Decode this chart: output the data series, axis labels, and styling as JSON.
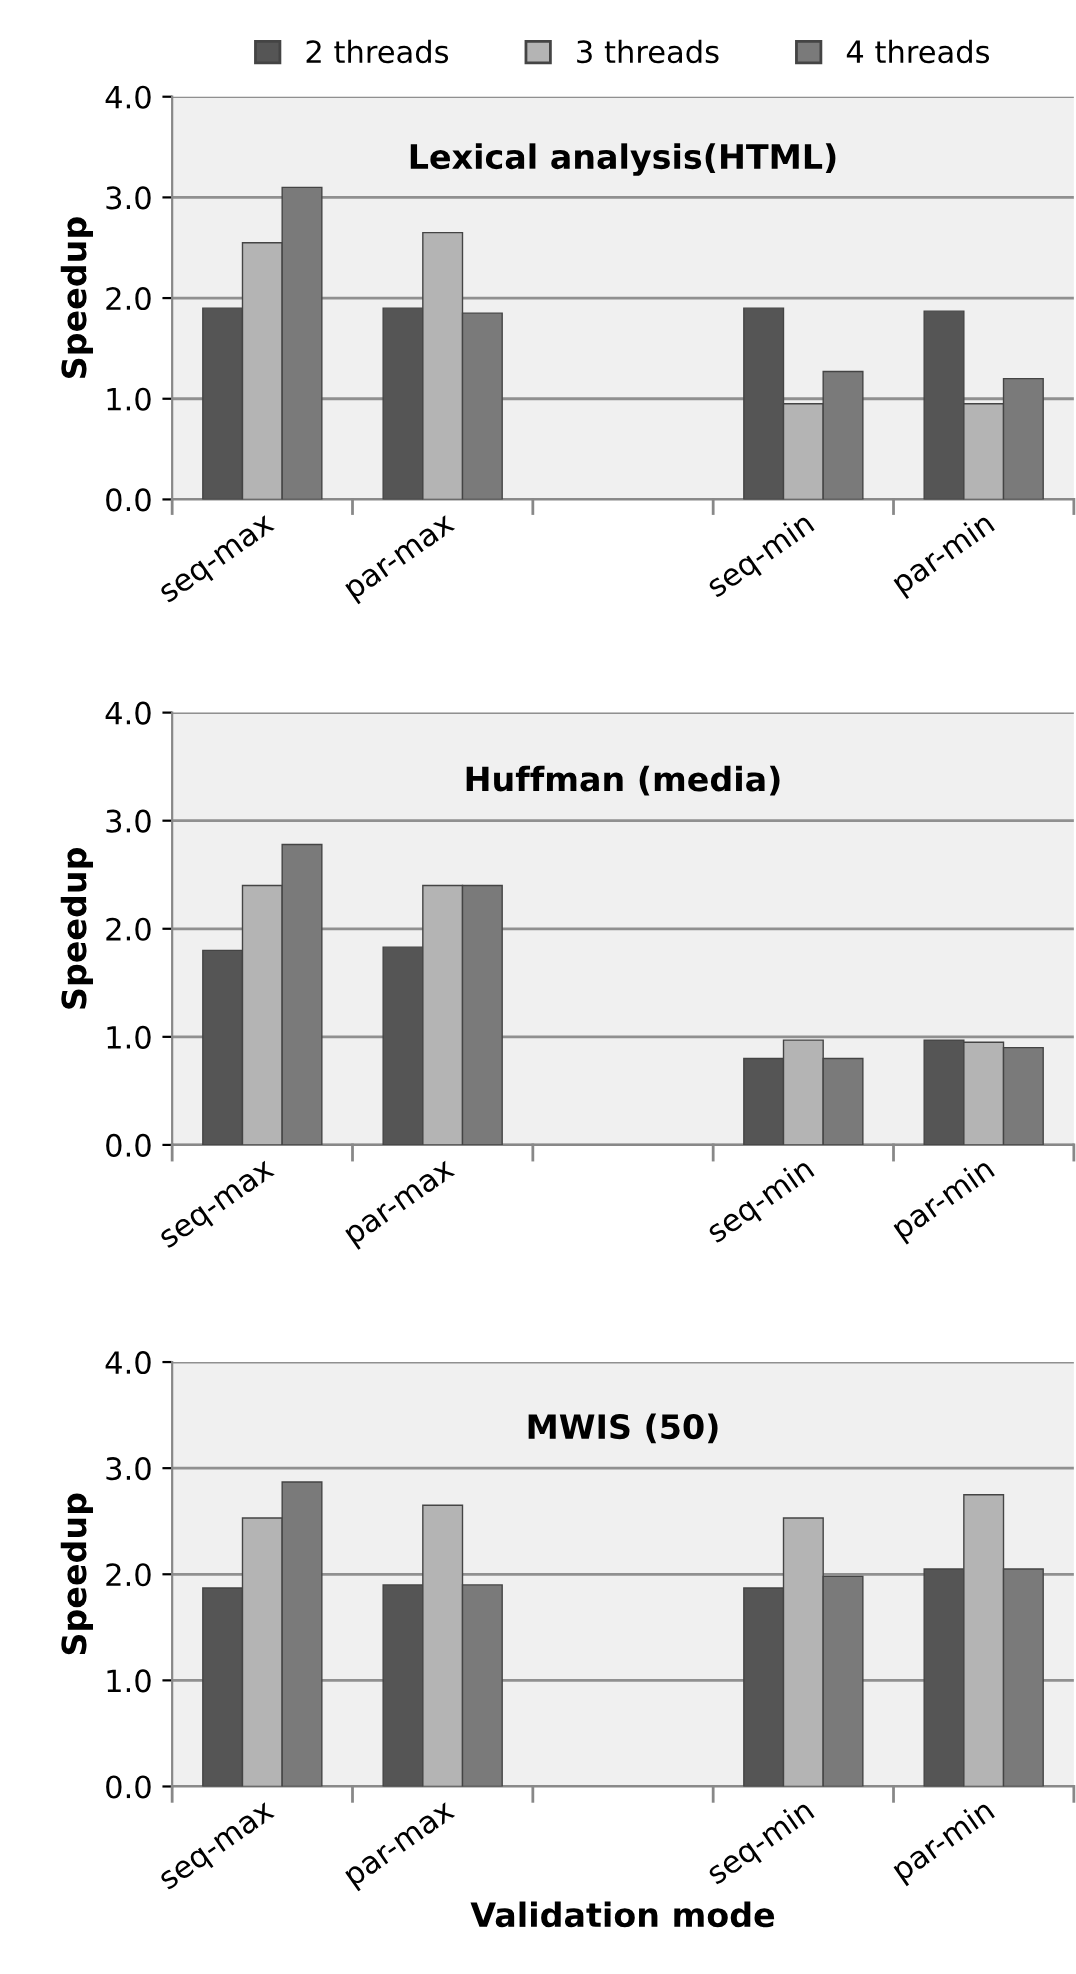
{
  "chart_data": [
    {
      "type": "bar",
      "title": "Lexical analysis(HTML)",
      "ylabel": "Speedup",
      "categories": [
        "seq-max",
        "par-max",
        null,
        "seq-min",
        "par-min"
      ],
      "ylim": [
        0,
        4
      ],
      "yticks": [
        {
          "value": 0,
          "label": "0.0"
        },
        {
          "value": 1,
          "label": "1.0"
        },
        {
          "value": 2,
          "label": "2.0"
        },
        {
          "value": 3,
          "label": "3.0"
        },
        {
          "value": 4,
          "label": "4.0"
        }
      ],
      "grid": "y",
      "legend": "top",
      "series": [
        {
          "name": "2 threads",
          "color": "#555555",
          "values": [
            1.9,
            1.9,
            null,
            1.9,
            1.87
          ]
        },
        {
          "name": "3 threads",
          "color": "#b4b4b4",
          "values": [
            2.55,
            2.65,
            null,
            0.95,
            0.95
          ]
        },
        {
          "name": "4 threads",
          "color": "#7a7a7a",
          "values": [
            3.1,
            1.85,
            null,
            1.27,
            1.2
          ]
        }
      ]
    },
    {
      "type": "bar",
      "title": "Huffman (media)",
      "ylabel": "Speedup",
      "categories": [
        "seq-max",
        "par-max",
        null,
        "seq-min",
        "par-min"
      ],
      "ylim": [
        0,
        4
      ],
      "yticks": [
        {
          "value": 0,
          "label": "0.0"
        },
        {
          "value": 1,
          "label": "1.0"
        },
        {
          "value": 2,
          "label": "2.0"
        },
        {
          "value": 3,
          "label": "3.0"
        },
        {
          "value": 4,
          "label": "4.0"
        }
      ],
      "grid": "y",
      "series": [
        {
          "color": "#555555",
          "values": [
            1.8,
            1.83,
            null,
            0.8,
            0.97
          ]
        },
        {
          "color": "#b4b4b4",
          "values": [
            2.4,
            2.4,
            null,
            0.97,
            0.95
          ]
        },
        {
          "color": "#7a7a7a",
          "values": [
            2.78,
            2.4,
            null,
            0.8,
            0.9
          ]
        }
      ]
    },
    {
      "type": "bar",
      "title": "MWIS (50)",
      "ylabel": "Speedup",
      "xlabel": "Validation mode",
      "categories": [
        "seq-max",
        "par-max",
        null,
        "seq-min",
        "par-min"
      ],
      "ylim": [
        0,
        4
      ],
      "yticks": [
        {
          "value": 0,
          "label": "0.0"
        },
        {
          "value": 1,
          "label": "1.0"
        },
        {
          "value": 2,
          "label": "2.0"
        },
        {
          "value": 3,
          "label": "3.0"
        },
        {
          "value": 4,
          "label": "4.0"
        }
      ],
      "grid": "y",
      "series": [
        {
          "color": "#555555",
          "values": [
            1.87,
            1.9,
            null,
            1.87,
            2.05
          ]
        },
        {
          "color": "#b4b4b4",
          "values": [
            2.53,
            2.65,
            null,
            2.53,
            2.75
          ]
        },
        {
          "color": "#7a7a7a",
          "values": [
            2.87,
            1.9,
            null,
            1.98,
            2.05
          ]
        }
      ]
    }
  ]
}
